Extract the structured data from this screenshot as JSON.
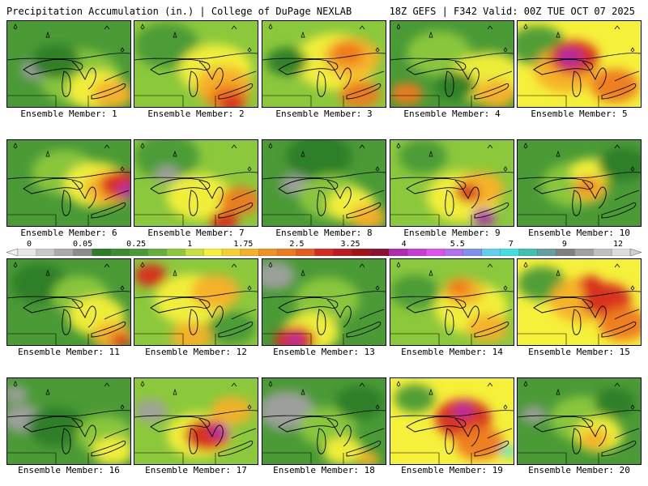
{
  "header": {
    "title": "Precipitation Accumulation (in.) | College of DuPage NEXLAB",
    "valid": "18Z GEFS | F342 Valid: 00Z TUE OCT 07 2025"
  },
  "colors": {
    "gray": "#a0a0a0",
    "darkgreen": "#2d7d26",
    "green": "#4a9a36",
    "lightgreen": "#8cc83c",
    "yellow": "#f5f03a",
    "orange": "#f5b028",
    "darkorange": "#ee7a1e",
    "red": "#d62a1e",
    "purple": "#b02ab0"
  },
  "scale": {
    "labels": [
      "0",
      "0.05",
      "0.25",
      "1",
      "1.75",
      "2.5",
      "3.25",
      "4",
      "5.5",
      "7",
      "9",
      "12"
    ],
    "colors": [
      "#e6e6e6",
      "#c8c8c8",
      "#aaaaaa",
      "#8c8c8c",
      "#2d7d26",
      "#3c8c30",
      "#4a9a36",
      "#64b03a",
      "#8cc83c",
      "#c8e040",
      "#f5f03a",
      "#f5d030",
      "#f5b028",
      "#f09020",
      "#ee7a1e",
      "#e65c1e",
      "#d62a1e",
      "#c0181e",
      "#a01418",
      "#8c1030",
      "#b02ab0",
      "#c83cd2",
      "#e050f0",
      "#b070f0",
      "#8090f0",
      "#60d0f0",
      "#40e0e0",
      "#40c0b0",
      "#60a0a0",
      "#808080",
      "#a0a0a0",
      "#c0c0c0",
      "#dcdcdc"
    ]
  },
  "members": [
    {
      "label": "Ensemble Member: 1",
      "base": "#4a9a36",
      "blobs": [
        [
          "#8cc83c",
          90,
          70,
          50
        ],
        [
          "#f5f03a",
          110,
          85,
          35
        ],
        [
          "#f5b028",
          130,
          90,
          25
        ],
        [
          "#a0a0a0",
          35,
          60,
          18
        ],
        [
          "#2d7d26",
          60,
          50,
          30
        ]
      ]
    },
    {
      "label": "Ensemble Member: 2",
      "base": "#8cc83c",
      "blobs": [
        [
          "#4a9a36",
          40,
          30,
          40
        ],
        [
          "#f5f03a",
          100,
          60,
          45
        ],
        [
          "#f5b028",
          110,
          80,
          35
        ],
        [
          "#ee7a1e",
          115,
          95,
          25
        ],
        [
          "#d62a1e",
          120,
          102,
          15
        ]
      ]
    },
    {
      "label": "Ensemble Member: 3",
      "base": "#8cc83c",
      "blobs": [
        [
          "#f5f03a",
          90,
          50,
          50
        ],
        [
          "#f5b028",
          110,
          45,
          35
        ],
        [
          "#ee7a1e",
          105,
          40,
          20
        ],
        [
          "#2d7d26",
          30,
          50,
          25
        ],
        [
          "#ee7a1e",
          120,
          90,
          25
        ]
      ]
    },
    {
      "label": "Ensemble Member: 4",
      "base": "#4a9a36",
      "blobs": [
        [
          "#8cc83c",
          60,
          40,
          40
        ],
        [
          "#f5f03a",
          120,
          70,
          45
        ],
        [
          "#f5b028",
          130,
          90,
          25
        ],
        [
          "#ee7a1e",
          20,
          90,
          20
        ],
        [
          "#2d7d26",
          80,
          80,
          25
        ]
      ]
    },
    {
      "label": "Ensemble Member: 5",
      "base": "#f5f03a",
      "blobs": [
        [
          "#4a9a36",
          25,
          30,
          35
        ],
        [
          "#f5b028",
          60,
          60,
          40
        ],
        [
          "#d62a1e",
          70,
          45,
          30
        ],
        [
          "#b02ab0",
          65,
          45,
          15
        ],
        [
          "#ee7a1e",
          120,
          80,
          30
        ]
      ]
    },
    {
      "label": "Ensemble Member: 6",
      "base": "#4a9a36",
      "blobs": [
        [
          "#8cc83c",
          70,
          40,
          40
        ],
        [
          "#f5f03a",
          110,
          55,
          40
        ],
        [
          "#f5b028",
          125,
          60,
          30
        ],
        [
          "#d62a1e",
          140,
          55,
          25
        ],
        [
          "#b02ab0",
          148,
          62,
          12
        ]
      ]
    },
    {
      "label": "Ensemble Member: 7",
      "base": "#8cc83c",
      "blobs": [
        [
          "#4a9a36",
          40,
          20,
          40
        ],
        [
          "#a0a0a0",
          40,
          42,
          15
        ],
        [
          "#f5f03a",
          80,
          70,
          40
        ],
        [
          "#ee7a1e",
          130,
          75,
          25
        ],
        [
          "#d62a1e",
          110,
          100,
          18
        ]
      ]
    },
    {
      "label": "Ensemble Member: 8",
      "base": "#4a9a36",
      "blobs": [
        [
          "#2d7d26",
          70,
          20,
          40
        ],
        [
          "#a0a0a0",
          40,
          55,
          18
        ],
        [
          "#8cc83c",
          85,
          70,
          40
        ],
        [
          "#f5f03a",
          110,
          80,
          30
        ],
        [
          "#f5b028",
          130,
          95,
          22
        ]
      ]
    },
    {
      "label": "Ensemble Member: 9",
      "base": "#8cc83c",
      "blobs": [
        [
          "#4a9a36",
          40,
          20,
          30
        ],
        [
          "#f5f03a",
          90,
          70,
          45
        ],
        [
          "#f5b028",
          110,
          60,
          30
        ],
        [
          "#d62a1e",
          95,
          65,
          15
        ],
        [
          "#b02ab0",
          115,
          95,
          15
        ]
      ]
    },
    {
      "label": "Ensemble Member: 10",
      "base": "#4a9a36",
      "blobs": [
        [
          "#8cc83c",
          70,
          55,
          40
        ],
        [
          "#f5f03a",
          90,
          40,
          25
        ],
        [
          "#f5b028",
          90,
          60,
          22
        ],
        [
          "#ee7a1e",
          85,
          55,
          12
        ],
        [
          "#2d7d26",
          130,
          30,
          30
        ]
      ]
    },
    {
      "label": "Ensemble Member: 11",
      "base": "#4a9a36",
      "blobs": [
        [
          "#2d7d26",
          40,
          30,
          35
        ],
        [
          "#8cc83c",
          90,
          45,
          35
        ],
        [
          "#f5f03a",
          110,
          70,
          35
        ],
        [
          "#f5b028",
          130,
          95,
          25
        ],
        [
          "#d62a1e",
          140,
          100,
          12
        ]
      ]
    },
    {
      "label": "Ensemble Member: 12",
      "base": "#8cc83c",
      "blobs": [
        [
          "#f5f03a",
          70,
          50,
          45
        ],
        [
          "#d62a1e",
          20,
          20,
          20
        ],
        [
          "#f5b028",
          100,
          40,
          30
        ],
        [
          "#4a9a36",
          120,
          85,
          30
        ],
        [
          "#f5b028",
          70,
          95,
          25
        ]
      ]
    },
    {
      "label": "Ensemble Member: 13",
      "base": "#4a9a36",
      "blobs": [
        [
          "#a0a0a0",
          15,
          20,
          25
        ],
        [
          "#8cc83c",
          80,
          50,
          40
        ],
        [
          "#f5f03a",
          60,
          90,
          35
        ],
        [
          "#d62a1e",
          40,
          100,
          25
        ],
        [
          "#b02ab0",
          40,
          100,
          10
        ]
      ]
    },
    {
      "label": "Ensemble Member: 14",
      "base": "#8cc83c",
      "blobs": [
        [
          "#4a9a36",
          30,
          40,
          30
        ],
        [
          "#f5f03a",
          100,
          60,
          45
        ],
        [
          "#f5b028",
          90,
          40,
          25
        ],
        [
          "#ee7a1e",
          85,
          35,
          14
        ],
        [
          "#f5b028",
          120,
          85,
          25
        ]
      ]
    },
    {
      "label": "Ensemble Member: 15",
      "base": "#f5f03a",
      "blobs": [
        [
          "#4a9a36",
          30,
          30,
          30
        ],
        [
          "#f5b028",
          80,
          50,
          40
        ],
        [
          "#d62a1e",
          110,
          50,
          30
        ],
        [
          "#ee7a1e",
          130,
          80,
          30
        ],
        [
          "#d62a1e",
          90,
          30,
          14
        ]
      ]
    },
    {
      "label": "Ensemble Member: 16",
      "base": "#4a9a36",
      "blobs": [
        [
          "#a0a0a0",
          20,
          50,
          25
        ],
        [
          "#2d7d26",
          60,
          60,
          35
        ],
        [
          "#8cc83c",
          120,
          70,
          35
        ],
        [
          "#f5f03a",
          130,
          90,
          25
        ],
        [
          "#a0a0a0",
          10,
          20,
          15
        ]
      ]
    },
    {
      "label": "Ensemble Member: 17",
      "base": "#8cc83c",
      "blobs": [
        [
          "#a0a0a0",
          20,
          40,
          20
        ],
        [
          "#f5f03a",
          80,
          70,
          40
        ],
        [
          "#d62a1e",
          90,
          70,
          28
        ],
        [
          "#b02ab0",
          105,
          65,
          12
        ],
        [
          "#f5b028",
          120,
          40,
          25
        ]
      ]
    },
    {
      "label": "Ensemble Member: 18",
      "base": "#4a9a36",
      "blobs": [
        [
          "#a0a0a0",
          30,
          40,
          35
        ],
        [
          "#8cc83c",
          80,
          60,
          35
        ],
        [
          "#f5f03a",
          100,
          90,
          25
        ],
        [
          "#2d7d26",
          120,
          30,
          30
        ],
        [
          "#f5b028",
          130,
          100,
          14
        ]
      ]
    },
    {
      "label": "Ensemble Member: 19",
      "base": "#f5f03a",
      "blobs": [
        [
          "#4a9a36",
          30,
          25,
          25
        ],
        [
          "#d62a1e",
          90,
          50,
          35
        ],
        [
          "#b02ab0",
          90,
          40,
          12
        ],
        [
          "#ee7a1e",
          110,
          80,
          30
        ],
        [
          "#40e0e0",
          145,
          90,
          10
        ]
      ]
    },
    {
      "label": "Ensemble Member: 20",
      "base": "#4a9a36",
      "blobs": [
        [
          "#a0a0a0",
          20,
          45,
          15
        ],
        [
          "#8cc83c",
          80,
          50,
          40
        ],
        [
          "#f5f03a",
          100,
          70,
          30
        ],
        [
          "#f5b028",
          95,
          75,
          18
        ],
        [
          "#2d7d26",
          120,
          30,
          25
        ]
      ]
    }
  ]
}
